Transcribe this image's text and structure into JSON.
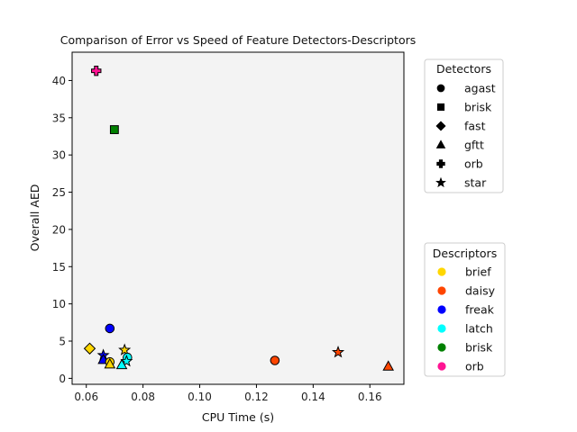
{
  "chart_data": {
    "type": "scatter",
    "title": "Comparison of Error vs Speed of Feature Detectors-Descriptors",
    "xlabel": "CPU Time (s)",
    "ylabel": "Overall AED",
    "xlim": [
      0.055,
      0.172
    ],
    "ylim": [
      -0.8,
      43.8
    ],
    "xticks": [
      0.06,
      0.08,
      0.1,
      0.12,
      0.14,
      0.16
    ],
    "xtick_labels": [
      "0.06",
      "0.08",
      "0.10",
      "0.12",
      "0.14",
      "0.16"
    ],
    "yticks": [
      0,
      5,
      10,
      15,
      20,
      25,
      30,
      35,
      40
    ],
    "ytick_labels": [
      "0",
      "5",
      "10",
      "15",
      "20",
      "25",
      "30",
      "35",
      "40"
    ],
    "plot_background": "#f3f3f3",
    "grid": false,
    "detectors_legend": {
      "title": "Detectors",
      "placement": "upper-right-outside",
      "entries": [
        {
          "name": "agast",
          "marker": "circle"
        },
        {
          "name": "brisk",
          "marker": "square"
        },
        {
          "name": "fast",
          "marker": "diamond"
        },
        {
          "name": "gftt",
          "marker": "triangle"
        },
        {
          "name": "orb",
          "marker": "plus"
        },
        {
          "name": "star",
          "marker": "star"
        }
      ]
    },
    "descriptors_legend": {
      "title": "Descriptors",
      "placement": "lower-right-outside",
      "entries": [
        {
          "name": "brief",
          "color": "#ffd700"
        },
        {
          "name": "daisy",
          "color": "#ff4500"
        },
        {
          "name": "freak",
          "color": "#0000ff"
        },
        {
          "name": "latch",
          "color": "#00ffff"
        },
        {
          "name": "brisk",
          "color": "#008000"
        },
        {
          "name": "orb",
          "color": "#ff1493"
        }
      ]
    },
    "points": [
      {
        "detector": "orb",
        "descriptor": "orb",
        "x": 0.0635,
        "y": 41.3
      },
      {
        "detector": "brisk",
        "descriptor": "brisk",
        "x": 0.0699,
        "y": 33.4
      },
      {
        "detector": "agast",
        "descriptor": "freak",
        "x": 0.0683,
        "y": 6.7
      },
      {
        "detector": "fast",
        "descriptor": "brief",
        "x": 0.0612,
        "y": 4.0
      },
      {
        "detector": "star",
        "descriptor": "freak",
        "x": 0.066,
        "y": 3.1
      },
      {
        "detector": "gftt",
        "descriptor": "freak",
        "x": 0.066,
        "y": 2.5
      },
      {
        "detector": "agast",
        "descriptor": "brief",
        "x": 0.0683,
        "y": 2.2
      },
      {
        "detector": "gftt",
        "descriptor": "brief",
        "x": 0.0683,
        "y": 1.9
      },
      {
        "detector": "star",
        "descriptor": "brief",
        "x": 0.0735,
        "y": 3.8
      },
      {
        "detector": "agast",
        "descriptor": "latch",
        "x": 0.0745,
        "y": 2.8
      },
      {
        "detector": "star",
        "descriptor": "latch",
        "x": 0.0742,
        "y": 2.3
      },
      {
        "detector": "gftt",
        "descriptor": "latch",
        "x": 0.0725,
        "y": 1.8
      },
      {
        "detector": "agast",
        "descriptor": "daisy",
        "x": 0.1265,
        "y": 2.4
      },
      {
        "detector": "star",
        "descriptor": "daisy",
        "x": 0.1488,
        "y": 3.5
      },
      {
        "detector": "gftt",
        "descriptor": "daisy",
        "x": 0.1665,
        "y": 1.6
      }
    ]
  }
}
